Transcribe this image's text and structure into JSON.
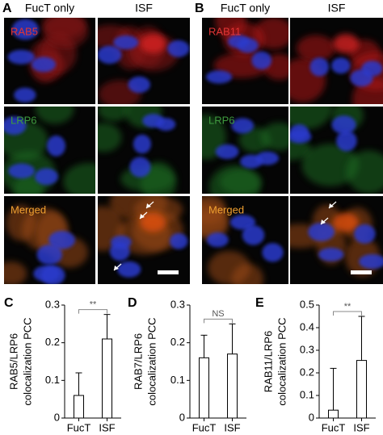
{
  "image_panels": [
    {
      "label": "A",
      "columns": [
        "FucT only",
        "ISF"
      ],
      "rows": [
        "RAB5",
        "LRP6",
        "Merged"
      ]
    },
    {
      "label": "B",
      "columns": [
        "FucT only",
        "ISF"
      ],
      "rows": [
        "RAB11",
        "LRP6",
        "Merged"
      ]
    }
  ],
  "chart_data": [
    {
      "type": "bar",
      "panel_label": "C",
      "y_label": [
        "RAB5/LRP6",
        "colocalization PCC"
      ],
      "categories": [
        "FucT",
        "ISF"
      ],
      "values": [
        0.06,
        0.21
      ],
      "errors": [
        0.06,
        0.065
      ],
      "color": "#ffffff",
      "ylim": [
        0,
        0.3
      ],
      "yticks": [
        0,
        0.1,
        0.2,
        0.3
      ],
      "significance": "**"
    },
    {
      "type": "bar",
      "panel_label": "D",
      "y_label": [
        "RAB7/LRP6",
        "colocalization PCC"
      ],
      "categories": [
        "FucT",
        "ISF"
      ],
      "values": [
        0.16,
        0.17
      ],
      "errors": [
        0.06,
        0.08
      ],
      "color": "#ffffff",
      "ylim": [
        0,
        0.3
      ],
      "yticks": [
        0,
        0.1,
        0.2,
        0.3
      ],
      "significance": "NS"
    },
    {
      "type": "bar",
      "panel_label": "E",
      "y_label": [
        "RAB11/LRP6",
        "colocalization PCC"
      ],
      "categories": [
        "FucT",
        "ISF"
      ],
      "values": [
        0.035,
        0.255
      ],
      "errors": [
        0.185,
        0.195
      ],
      "color": "#ffffff",
      "ylim": [
        0,
        0.5
      ],
      "yticks": [
        0,
        0.1,
        0.2,
        0.3,
        0.4,
        0.5
      ],
      "significance": "**"
    }
  ]
}
